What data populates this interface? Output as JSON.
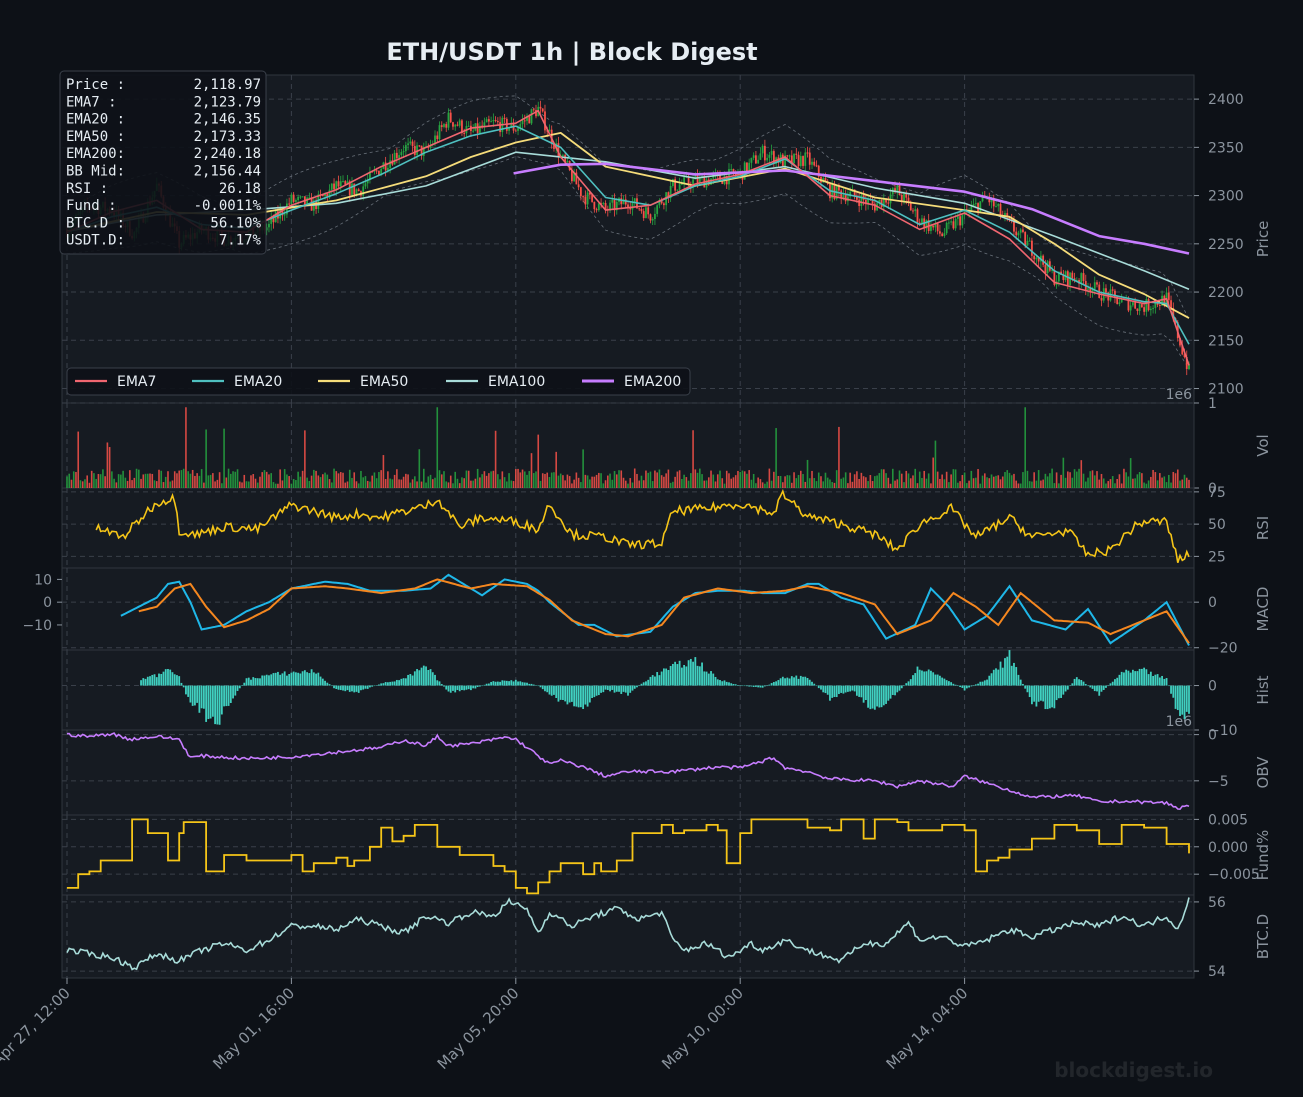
{
  "title": "ETH/USDT  1h  |  Block Digest",
  "watermark": "blockdigest.io",
  "colors": {
    "background": "#0d1117",
    "panel": "#161b22",
    "up_candle": "#26a641",
    "down_candle": "#f85149",
    "ema7": "#f06670",
    "ema20": "#4fc0c0",
    "ema50": "#f5dc7a",
    "ema100": "#a8dcd9",
    "ema200": "#c77dff",
    "bollinger": "#8b949e",
    "rsi": "#f5c518",
    "macd": "#1fb7e8",
    "signal": "#f5871f",
    "hist": "#40d0c0",
    "obv": "#c77dff",
    "funding": "#f5c518",
    "btcd": "#a8dcd9"
  },
  "info_box": [
    {
      "label": "Price :",
      "value": "2,118.97"
    },
    {
      "label": "EMA7  :",
      "value": "2,123.79"
    },
    {
      "label": "EMA20 :",
      "value": "2,146.35"
    },
    {
      "label": "EMA50 :",
      "value": "2,173.33"
    },
    {
      "label": "EMA200:",
      "value": "2,240.18"
    },
    {
      "label": "BB Mid:",
      "value": "2,156.44"
    },
    {
      "label": "RSI   :",
      "value": "26.18"
    },
    {
      "label": "Fund  :",
      "value": "-0.0011%"
    },
    {
      "label": "BTC.D :",
      "value": "56.10%"
    },
    {
      "label": "USDT.D:",
      "value": "7.17%"
    }
  ],
  "legend": [
    "EMA7",
    "EMA20",
    "EMA50",
    "EMA100",
    "EMA200"
  ],
  "x_axis": {
    "labels": [
      "Apr 27, 12:00",
      "May 01, 16:00",
      "May 05, 20:00",
      "May 10, 00:00",
      "May 14, 04:00"
    ],
    "tick_hours": [
      0,
      100,
      200,
      300,
      400
    ],
    "range_hours": [
      0,
      500
    ]
  },
  "panels": [
    {
      "key": "price",
      "label": "Price",
      "ylim": [
        2085,
        2425
      ],
      "ticks": [
        2100,
        2150,
        2200,
        2250,
        2300,
        2350,
        2400
      ],
      "tick_labels": [
        "2100",
        "2150",
        "2200",
        "2250",
        "2300",
        "2350",
        "2400"
      ],
      "offset": "1e6",
      "side": "right"
    },
    {
      "key": "vol",
      "label": "Vol",
      "ylim": [
        0,
        1
      ],
      "ticks": [
        0,
        1
      ],
      "tick_labels": [
        "0",
        "1"
      ],
      "side": "right"
    },
    {
      "key": "rsi",
      "label": "RSI",
      "ylim": [
        16,
        78
      ],
      "ticks": [
        25,
        50,
        75
      ],
      "tick_labels": [
        "25",
        "50",
        "75"
      ],
      "side": "right"
    },
    {
      "key": "macd",
      "label": "MACD",
      "ylim": [
        -21,
        15
      ],
      "ticks": [
        -20,
        0
      ],
      "tick_labels": [
        "−20",
        "0"
      ],
      "side": "right",
      "left_ticks": [
        -10,
        0,
        10
      ],
      "left_tick_labels": [
        "−10",
        "0",
        "10"
      ]
    },
    {
      "key": "hist",
      "label": "Hist",
      "ylim": [
        -10,
        8
      ],
      "ticks": [
        -10,
        0
      ],
      "tick_labels": [
        "−10",
        "0"
      ],
      "offset": "1e6",
      "side": "right"
    },
    {
      "key": "obv",
      "label": "OBV",
      "ylim": [
        -8.7,
        0.5
      ],
      "ticks": [
        -5,
        0
      ],
      "tick_labels": [
        "−5",
        "0"
      ],
      "side": "right"
    },
    {
      "key": "fund",
      "label": "Fund%",
      "ylim": [
        -0.0088,
        0.0058
      ],
      "ticks": [
        -0.005,
        0,
        0.005
      ],
      "tick_labels": [
        "−0.005",
        "0.000",
        "0.005"
      ],
      "side": "right"
    },
    {
      "key": "btcd",
      "label": "BTC.D",
      "ylim": [
        53.8,
        56.2
      ],
      "ticks": [
        54,
        56
      ],
      "tick_labels": [
        "54",
        "56"
      ],
      "side": "right"
    }
  ],
  "chart_data": {
    "type": "line",
    "symbol": "ETH/USDT",
    "interval": "1h",
    "x_unit": "hours since Apr 27, 12:00",
    "candles": {
      "x": [
        0,
        10,
        20,
        30,
        40,
        50,
        60,
        70,
        80,
        90,
        100,
        110,
        120,
        130,
        140,
        150,
        160,
        170,
        180,
        190,
        200,
        210,
        220,
        230,
        240,
        250,
        260,
        270,
        280,
        290,
        300,
        310,
        320,
        330,
        340,
        350,
        360,
        370,
        380,
        390,
        400,
        410,
        420,
        430,
        440,
        450,
        460,
        470,
        480,
        490,
        500
      ],
      "close": [
        2265,
        2290,
        2285,
        2260,
        2310,
        2250,
        2265,
        2255,
        2260,
        2268,
        2295,
        2290,
        2310,
        2305,
        2330,
        2350,
        2345,
        2380,
        2365,
        2375,
        2370,
        2390,
        2340,
        2300,
        2285,
        2295,
        2280,
        2310,
        2315,
        2318,
        2322,
        2345,
        2335,
        2338,
        2305,
        2300,
        2290,
        2305,
        2275,
        2260,
        2280,
        2298,
        2270,
        2245,
        2215,
        2215,
        2200,
        2190,
        2185,
        2193,
        2118
      ]
    },
    "ema7": {
      "x": [
        0,
        20,
        40,
        60,
        80,
        100,
        120,
        140,
        160,
        180,
        200,
        210,
        220,
        240,
        260,
        280,
        300,
        320,
        340,
        360,
        380,
        400,
        420,
        440,
        460,
        480,
        490,
        500
      ],
      "y": [
        2262,
        2283,
        2295,
        2265,
        2262,
        2290,
        2306,
        2330,
        2350,
        2370,
        2375,
        2388,
        2340,
        2285,
        2290,
        2312,
        2322,
        2340,
        2300,
        2290,
        2265,
        2282,
        2255,
        2210,
        2198,
        2188,
        2193,
        2124
      ]
    },
    "ema20": {
      "x": [
        0,
        20,
        40,
        60,
        80,
        100,
        120,
        140,
        160,
        180,
        200,
        220,
        240,
        260,
        280,
        300,
        320,
        340,
        360,
        380,
        400,
        420,
        440,
        460,
        480,
        490,
        500
      ],
      "y": [
        2262,
        2278,
        2288,
        2270,
        2266,
        2285,
        2302,
        2322,
        2345,
        2362,
        2372,
        2350,
        2298,
        2290,
        2310,
        2320,
        2338,
        2305,
        2295,
        2270,
        2285,
        2262,
        2222,
        2200,
        2190,
        2188,
        2146
      ]
    },
    "ema50": {
      "x": [
        0,
        40,
        80,
        120,
        160,
        180,
        200,
        220,
        240,
        280,
        320,
        360,
        400,
        420,
        440,
        460,
        480,
        500
      ],
      "y": [
        2263,
        2283,
        2280,
        2295,
        2320,
        2340,
        2355,
        2365,
        2330,
        2310,
        2328,
        2298,
        2285,
        2278,
        2250,
        2218,
        2198,
        2173
      ]
    },
    "ema100": {
      "x": [
        0,
        40,
        80,
        120,
        160,
        200,
        240,
        280,
        320,
        360,
        400,
        440,
        480,
        500
      ],
      "y": [
        2263,
        2280,
        2285,
        2292,
        2310,
        2345,
        2335,
        2318,
        2330,
        2308,
        2292,
        2258,
        2222,
        2203
      ]
    },
    "ema200": {
      "x": [
        199,
        220,
        240,
        280,
        320,
        360,
        400,
        430,
        460,
        480,
        500
      ],
      "y": [
        2323,
        2332,
        2333,
        2322,
        2326,
        2315,
        2304,
        2286,
        2258,
        2250,
        2240
      ]
    },
    "rsi": {
      "x": [
        13,
        25,
        37,
        42,
        48,
        50,
        58,
        70,
        85,
        100,
        110,
        120,
        130,
        140,
        150,
        160,
        165,
        175,
        185,
        200,
        210,
        215,
        225,
        240,
        250,
        265,
        270,
        285,
        300,
        316,
        318,
        330,
        345,
        360,
        370,
        380,
        394,
        405,
        420,
        430,
        446,
        455,
        465,
        475,
        480,
        490,
        495,
        500
      ],
      "y": [
        47,
        40,
        62,
        68,
        70,
        45,
        42,
        48,
        46,
        65,
        60,
        55,
        58,
        55,
        60,
        64,
        70,
        48,
        55,
        52,
        46,
        66,
        42,
        40,
        34,
        35,
        60,
        62,
        66,
        58,
        74,
        56,
        50,
        42,
        30,
        50,
        62,
        40,
        55,
        40,
        45,
        26,
        30,
        47,
        52,
        52,
        22,
        26
      ]
    },
    "macd": {
      "x": [
        24,
        30,
        40,
        45,
        50,
        55,
        60,
        70,
        80,
        90,
        100,
        115,
        125,
        135,
        150,
        162,
        170,
        185,
        195,
        205,
        210,
        215,
        228,
        235,
        245,
        260,
        270,
        280,
        290,
        302,
        310,
        320,
        330,
        335,
        345,
        355,
        365,
        378,
        385,
        393,
        400,
        410,
        420,
        430,
        445,
        455,
        465,
        480,
        490,
        500
      ],
      "y": [
        -6,
        -3,
        2,
        8,
        9,
        0,
        -12,
        -10,
        -4,
        0,
        6,
        9,
        8,
        5,
        5,
        6,
        12,
        3,
        10,
        8,
        5,
        0,
        -10,
        -10,
        -15,
        -13,
        -2,
        4,
        5,
        5,
        4,
        4,
        8,
        8,
        2,
        -1,
        -16,
        -10,
        6,
        -2,
        -12,
        -6,
        7,
        -8,
        -12,
        -3,
        -18,
        -8,
        0,
        -19
      ]
    },
    "signal": {
      "x": [
        32,
        40,
        48,
        55,
        62,
        70,
        80,
        90,
        100,
        115,
        125,
        140,
        155,
        165,
        180,
        190,
        205,
        215,
        225,
        240,
        250,
        265,
        275,
        290,
        305,
        320,
        330,
        345,
        360,
        370,
        385,
        395,
        405,
        415,
        425,
        440,
        455,
        465,
        480,
        490,
        500
      ],
      "y": [
        -4,
        -2,
        6,
        8,
        -2,
        -11,
        -8,
        -3,
        6,
        7,
        6,
        4,
        6,
        10,
        6,
        8,
        7,
        1,
        -8,
        -14,
        -15,
        -10,
        2,
        6,
        4,
        5,
        7,
        4,
        -1,
        -14,
        -8,
        4,
        -2,
        -10,
        4,
        -8,
        -9,
        -14,
        -8,
        -4,
        -18
      ]
    },
    "hist": {
      "x": [
        33,
        40,
        46,
        50,
        54,
        60,
        66,
        75,
        80,
        90,
        100,
        110,
        120,
        130,
        140,
        150,
        160,
        170,
        180,
        190,
        200,
        210,
        220,
        230,
        240,
        250,
        260,
        270,
        280,
        290,
        300,
        310,
        320,
        330,
        340,
        350,
        360,
        370,
        380,
        390,
        400,
        410,
        420,
        430,
        440,
        450,
        460,
        470,
        480,
        490,
        496,
        500
      ],
      "y": [
        1.5,
        2.5,
        4.5,
        2,
        -3,
        -6,
        -9.5,
        -2,
        1.5,
        2.5,
        3,
        3.5,
        -1,
        -1.5,
        0.5,
        1.5,
        4.5,
        -1.5,
        -1,
        1,
        1.2,
        0,
        -4,
        -5,
        -1,
        -2,
        2,
        4.5,
        6,
        1.5,
        0,
        -0.5,
        2,
        2,
        -3,
        -1,
        -6,
        -2,
        4.5,
        2,
        -1,
        1.5,
        7,
        -4,
        -5,
        2,
        -2,
        3,
        3.5,
        1.5,
        -8,
        -6.5
      ]
    },
    "obv": {
      "x": [
        0,
        10,
        20,
        28,
        40,
        50,
        55,
        60,
        80,
        100,
        120,
        140,
        150,
        160,
        165,
        170,
        180,
        195,
        200,
        215,
        220,
        230,
        240,
        250,
        270,
        290,
        300,
        315,
        320,
        330,
        340,
        360,
        370,
        380,
        395,
        400,
        420,
        430,
        450,
        460,
        470,
        490,
        495,
        500
      ],
      "y": [
        0,
        -0.2,
        0.1,
        -0.5,
        -0.2,
        -0.5,
        -2.5,
        -2.3,
        -2.6,
        -2.4,
        -1.9,
        -1.4,
        -0.6,
        -1.2,
        -0.2,
        -1.2,
        -1.0,
        -0.3,
        -0.5,
        -3.2,
        -2.8,
        -3.5,
        -4.5,
        -4.0,
        -4.0,
        -3.5,
        -3.6,
        -2.5,
        -3.6,
        -4.0,
        -4.8,
        -5.0,
        -5.6,
        -5.0,
        -5.6,
        -4.5,
        -6.0,
        -6.8,
        -6.6,
        -7.3,
        -7.2,
        -7.4,
        -8.0,
        -7.6
      ]
    },
    "funding": {
      "x": [
        0,
        5,
        10,
        15,
        20,
        25,
        29,
        36,
        40,
        45,
        50,
        52,
        60,
        62,
        68,
        70,
        80,
        90,
        100,
        105,
        110,
        115,
        120,
        125,
        128,
        135,
        140,
        145,
        150,
        155,
        160,
        165,
        170,
        175,
        180,
        190,
        195,
        200,
        205,
        210,
        215,
        220,
        230,
        235,
        238,
        245,
        252,
        260,
        265,
        270,
        275,
        285,
        290,
        294,
        300,
        305,
        310,
        320,
        330,
        340,
        345,
        355,
        360,
        365,
        370,
        375,
        380,
        390,
        400,
        405,
        410,
        415,
        420,
        430,
        440,
        450,
        460,
        470,
        480,
        490,
        500
      ],
      "y": [
        -0.0075,
        -0.005,
        -0.0045,
        -0.0025,
        -0.0025,
        -0.0025,
        0.005,
        0.0025,
        0.0025,
        -0.0025,
        0.0025,
        0.0045,
        0.0045,
        -0.0045,
        -0.0045,
        -0.0015,
        -0.0025,
        -0.0025,
        -0.0015,
        -0.0045,
        -0.003,
        -0.003,
        -0.002,
        -0.0035,
        -0.0025,
        0.0,
        0.0035,
        0.001,
        0.002,
        0.004,
        0.004,
        0.0,
        0.0,
        -0.0015,
        -0.0015,
        -0.0035,
        -0.0045,
        -0.0075,
        -0.0085,
        -0.0065,
        -0.0045,
        -0.003,
        -0.005,
        -0.003,
        -0.0045,
        -0.0025,
        0.0025,
        0.0025,
        0.004,
        0.0025,
        0.003,
        0.004,
        0.003,
        -0.003,
        0.0025,
        0.005,
        0.005,
        0.005,
        0.0035,
        0.003,
        0.005,
        0.0015,
        0.005,
        0.005,
        0.0045,
        0.003,
        0.003,
        0.004,
        0.003,
        -0.0045,
        -0.0025,
        -0.002,
        -0.0005,
        0.0015,
        0.004,
        0.003,
        0.0005,
        0.004,
        0.0035,
        0.0005,
        -0.0012
      ]
    },
    "btcd": {
      "x": [
        0,
        10,
        20,
        30,
        40,
        50,
        60,
        70,
        80,
        90,
        100,
        110,
        120,
        130,
        140,
        150,
        160,
        170,
        180,
        190,
        197,
        205,
        210,
        215,
        225,
        235,
        245,
        255,
        265,
        270,
        275,
        285,
        295,
        305,
        310,
        320,
        330,
        345,
        355,
        365,
        375,
        380,
        390,
        400,
        410,
        420,
        430,
        440,
        450,
        460,
        470,
        480,
        490,
        495,
        500
      ],
      "y": [
        54.6,
        54.5,
        54.4,
        54.1,
        54.5,
        54.3,
        54.6,
        54.8,
        54.6,
        54.9,
        55.3,
        55.3,
        55.2,
        55.5,
        55.3,
        55.1,
        55.6,
        55.4,
        55.7,
        55.6,
        56.0,
        55.8,
        55.1,
        55.7,
        55.3,
        55.6,
        55.8,
        55.5,
        55.7,
        54.9,
        54.6,
        54.8,
        54.4,
        54.8,
        54.6,
        54.9,
        54.6,
        54.3,
        54.8,
        54.8,
        55.4,
        54.9,
        55.0,
        54.7,
        54.9,
        55.2,
        55.0,
        55.2,
        55.4,
        55.3,
        55.6,
        55.3,
        55.6,
        55.2,
        56.1
      ]
    }
  }
}
